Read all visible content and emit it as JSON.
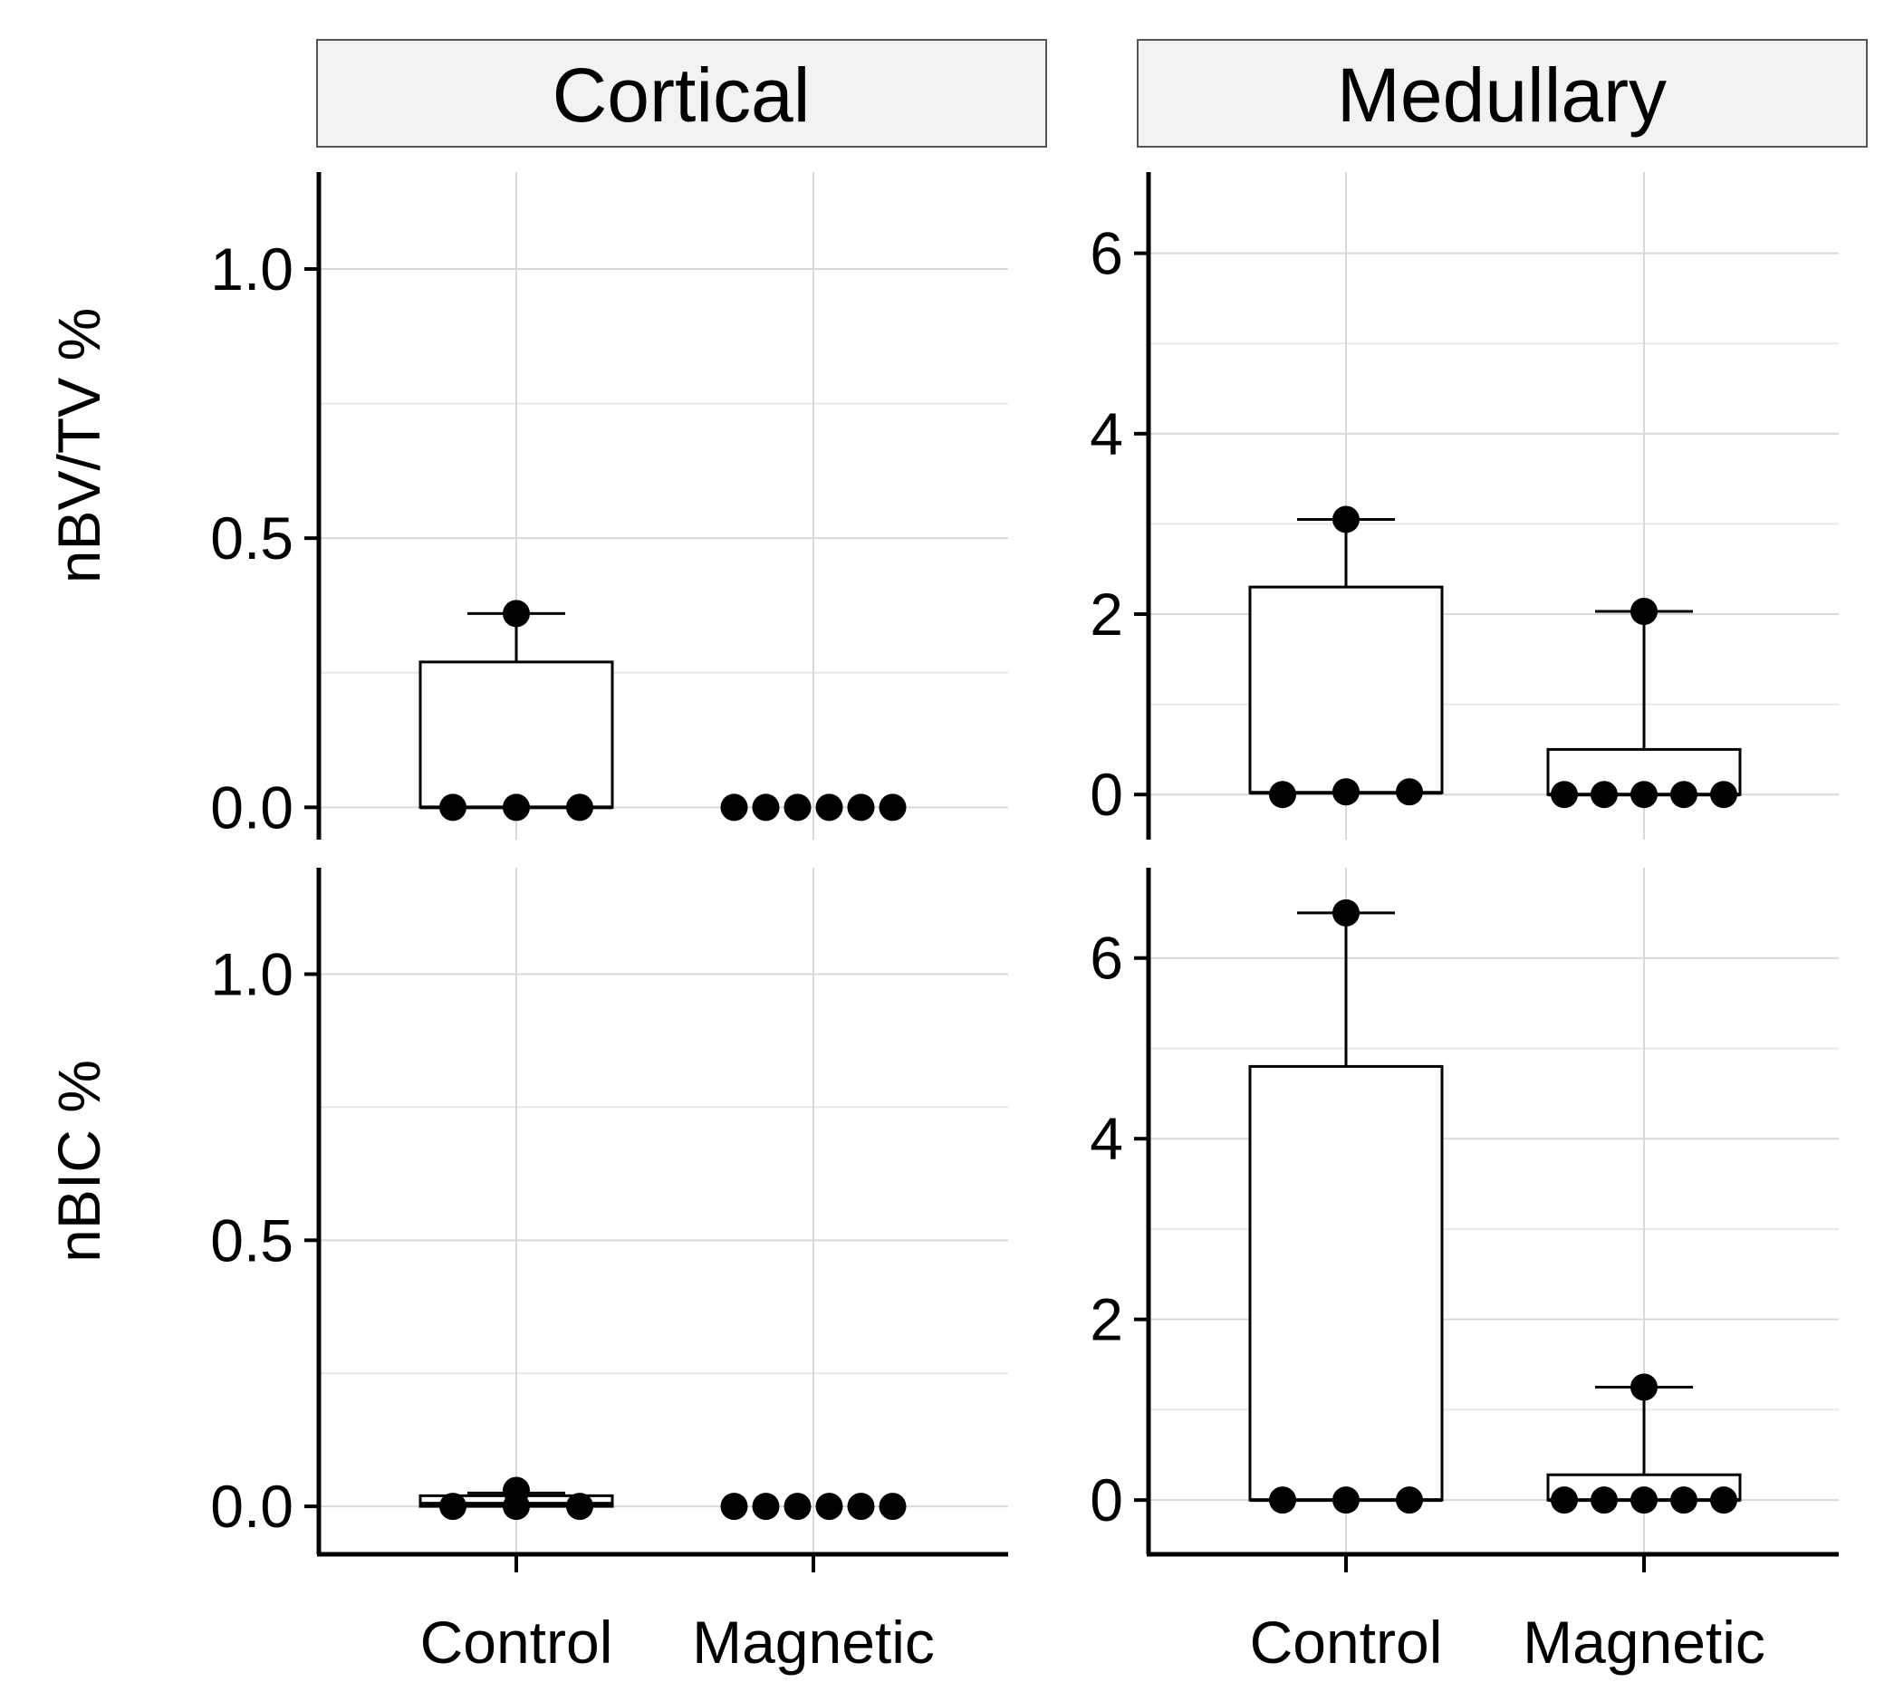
{
  "colors": {
    "strip_fill": "#f2f2f2",
    "strip_border": "#555555",
    "grid_major": "#d9d9d9",
    "grid_minor": "#e8e8e8",
    "axis": "#000000",
    "point": "#000000",
    "box_fill": "#ffffff"
  },
  "chart_data": [
    {
      "type": "boxplot",
      "panel": "cortical-nbvtv",
      "strip": "Cortical",
      "ylabel": "nBV/TV %",
      "categories": [
        "Control",
        "Magnetic"
      ],
      "ylim": [
        -0.06,
        1.18
      ],
      "yticks": [
        0.0,
        0.5,
        1.0
      ],
      "ytick_labels": [
        "0.0",
        "0.5",
        "1.0"
      ],
      "yminor": [
        0.25,
        0.75
      ],
      "boxes": [
        {
          "category": "Control",
          "q1": 0.0,
          "median": 0.0,
          "q3": 0.27,
          "whisker_low": 0.0,
          "whisker_high": 0.36
        },
        {
          "category": "Magnetic",
          "q1": 0.0,
          "median": 0.0,
          "q3": 0.0,
          "whisker_low": 0.0,
          "whisker_high": 0.0
        }
      ],
      "points": [
        {
          "category": "Control",
          "values": [
            0.36,
            0.0,
            0.0,
            0.0
          ]
        },
        {
          "category": "Magnetic",
          "values": [
            0.0,
            0.0,
            0.0,
            0.0,
            0.0,
            0.0
          ]
        }
      ]
    },
    {
      "type": "boxplot",
      "panel": "medullary-nbvtv",
      "strip": "Medullary",
      "ylabel": "",
      "categories": [
        "Control",
        "Magnetic"
      ],
      "ylim": [
        -0.5,
        6.9
      ],
      "yticks": [
        0,
        2,
        4,
        6
      ],
      "ytick_labels": [
        "0",
        "2",
        "4",
        "6"
      ],
      "yminor": [
        1,
        3,
        5
      ],
      "boxes": [
        {
          "category": "Control",
          "q1": 0.02,
          "median": 0.02,
          "q3": 2.3,
          "whisker_low": 0.02,
          "whisker_high": 3.05
        },
        {
          "category": "Magnetic",
          "q1": 0.0,
          "median": 0.0,
          "q3": 0.5,
          "whisker_low": 0.0,
          "whisker_high": 2.03
        }
      ],
      "points": [
        {
          "category": "Control",
          "values": [
            3.05,
            0.0,
            0.03,
            0.03
          ]
        },
        {
          "category": "Magnetic",
          "values": [
            2.03,
            0.0,
            0.0,
            0.0,
            0.0,
            0.0
          ]
        }
      ]
    },
    {
      "type": "boxplot",
      "panel": "cortical-nbic",
      "strip": "",
      "ylabel": "nBIC %",
      "categories": [
        "Control",
        "Magnetic"
      ],
      "ylim": [
        -0.09,
        1.2
      ],
      "yticks": [
        0.0,
        0.5,
        1.0
      ],
      "ytick_labels": [
        "0.0",
        "0.5",
        "1.0"
      ],
      "yminor": [
        0.25,
        0.75
      ],
      "boxes": [
        {
          "category": "Control",
          "q1": 0.0,
          "median": 0.005,
          "q3": 0.02,
          "whisker_low": 0.0,
          "whisker_high": 0.025
        },
        {
          "category": "Magnetic",
          "q1": 0.0,
          "median": 0.0,
          "q3": 0.0,
          "whisker_low": 0.0,
          "whisker_high": 0.0
        }
      ],
      "points": [
        {
          "category": "Control",
          "values": [
            0.03,
            0.0,
            0.0,
            0.0
          ]
        },
        {
          "category": "Magnetic",
          "values": [
            0.0,
            0.0,
            0.0,
            0.0,
            0.0,
            0.0
          ]
        }
      ]
    },
    {
      "type": "boxplot",
      "panel": "medullary-nbic",
      "strip": "",
      "ylabel": "",
      "categories": [
        "Control",
        "Magnetic"
      ],
      "ylim": [
        -0.6,
        7.0
      ],
      "yticks": [
        0,
        2,
        4,
        6
      ],
      "ytick_labels": [
        "0",
        "2",
        "4",
        "6"
      ],
      "yminor": [
        1,
        3,
        5
      ],
      "boxes": [
        {
          "category": "Control",
          "q1": 0.0,
          "median": 0.0,
          "q3": 4.8,
          "whisker_low": 0.0,
          "whisker_high": 6.5
        },
        {
          "category": "Magnetic",
          "q1": 0.0,
          "median": 0.0,
          "q3": 0.28,
          "whisker_low": 0.0,
          "whisker_high": 1.25
        }
      ],
      "points": [
        {
          "category": "Control",
          "values": [
            6.5,
            0.0,
            0.0,
            0.0
          ]
        },
        {
          "category": "Magnetic",
          "values": [
            1.25,
            0.0,
            0.0,
            0.0,
            0.0,
            0.0
          ]
        }
      ]
    }
  ]
}
